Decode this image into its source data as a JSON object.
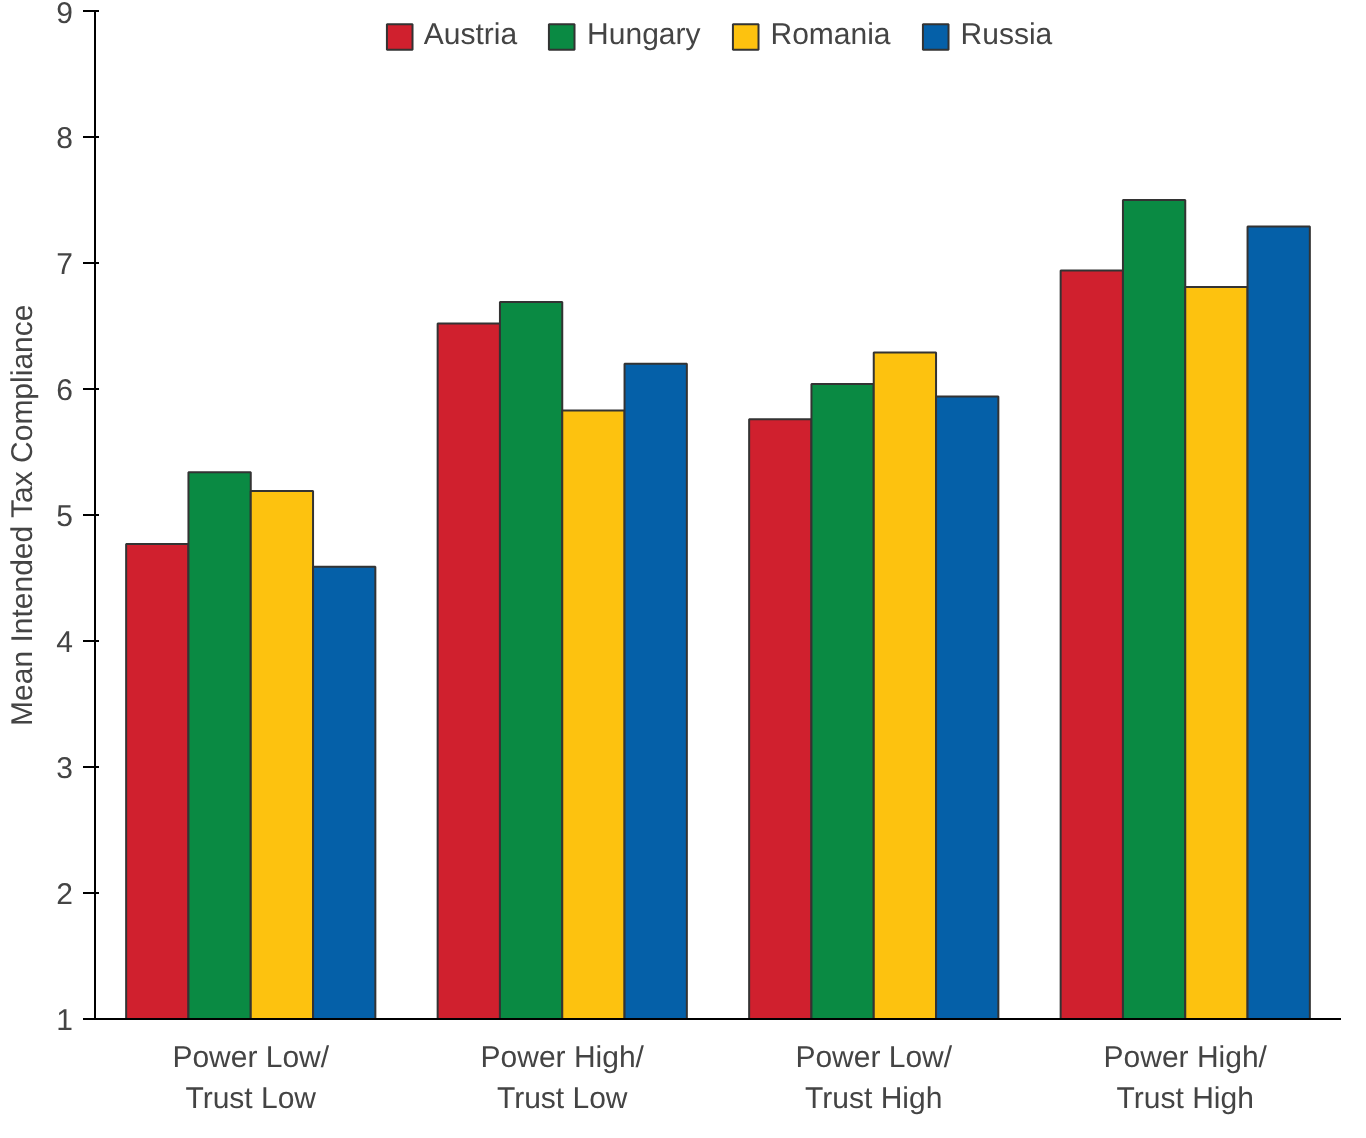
{
  "chart_data": {
    "type": "bar",
    "ylabel": "Mean Intended Tax Compliance",
    "categories": [
      "Power Low/\nTrust Low",
      "Power High/\nTrust Low",
      "Power Low/\nTrust High",
      "Power High/\nTrust High"
    ],
    "series": [
      {
        "name": "Austria",
        "color": "#d0202e",
        "values": [
          4.77,
          6.52,
          5.76,
          6.94
        ]
      },
      {
        "name": "Hungary",
        "color": "#0a8a43",
        "values": [
          5.34,
          6.69,
          6.04,
          7.5
        ]
      },
      {
        "name": "Romania",
        "color": "#fdc20f",
        "values": [
          5.19,
          5.83,
          6.29,
          6.81
        ]
      },
      {
        "name": "Russia",
        "color": "#0560a8",
        "values": [
          4.59,
          6.2,
          5.94,
          7.29
        ]
      }
    ],
    "ylim": [
      1,
      9
    ],
    "yticks": [
      1,
      2,
      3,
      4,
      5,
      6,
      7,
      8,
      9
    ],
    "grid": false,
    "legend": "top"
  }
}
